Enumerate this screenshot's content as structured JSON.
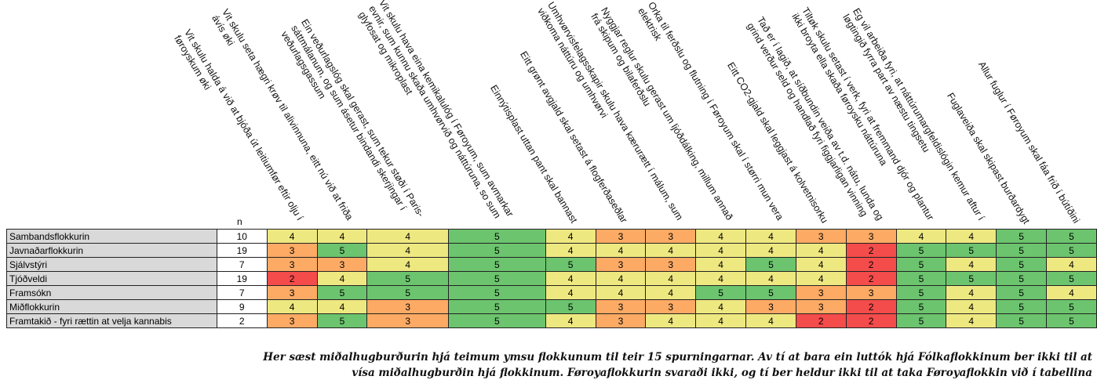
{
  "chart_data": {
    "type": "heatmap",
    "n_label": "n",
    "questions": [
      [
        "Vit skulu halda á við at bjóða út leitiumfør eftir olju í",
        "føroyskum øki"
      ],
      [
        "Vit skulu seta hægri krøv til alivinnuna, eitt nú við at friða",
        "ávís øki"
      ],
      [
        "Ein veðurlagslóg skal gerast, sum tekur støði í Paris-",
        "sáttmálanum, og sum ásetur bindandi skerjingar í",
        "veðurlagsgassum"
      ],
      [
        "Vit skulu hava eina kemikalulóg í Føroyum, sum avmarkar",
        "evnir, sum kunnu skaða umhvørvið og náttúruna, so sum",
        "glyfosat og mikroplast"
      ],
      [
        "Einnýtisplast uttan pant skal bannast"
      ],
      [
        "Eitt grønt avgjald skal setast á flogferðaseðlar"
      ],
      [
        "Umhvørvisfelagsskapir skulu hava kærurætt í málum, sum",
        "viðkoma náttúru og umhvørvi"
      ],
      [
        "Nyggjar reglur skulu gerast um ljóðdálking, millum annað",
        "frá skipum og bilaferðslu"
      ],
      [
        "Orka til ferðslu og flutning í Føroyum skal í størri mun vera",
        "elektrisk"
      ],
      [
        "Eitt CO2-gjald skal leggjast á kolvetnisorku"
      ],
      [
        "Tað er í lagið, at síðbundin veiða av t.d. nátu, lunda og",
        "grind verður seld og handlað fyri figgjarligan vinning"
      ],
      [
        "Tiltøk skulu setast í verk, fyri at fremmand djór og plantur",
        "ikki broyta ella skaða føroysku náttúruna"
      ],
      [
        "Eg vil arbeiða fyri, at náttúrumargfeldislógin kemur aftur í",
        "løgtingið fyrra part av næstu tingsetu"
      ],
      [
        "Fuglaveiða skal skipast burðardygt"
      ],
      [
        "Allur fuglur í Føroyum skal fáa frið í bútíðini"
      ]
    ],
    "parties": [
      {
        "name": "Sambandsflokkurin",
        "n": 10,
        "values": [
          4,
          4,
          4,
          5,
          4,
          3,
          3,
          4,
          4,
          3,
          3,
          4,
          4,
          5,
          5
        ]
      },
      {
        "name": "Javnaðarflokkurin",
        "n": 19,
        "values": [
          3,
          5,
          4,
          5,
          4,
          4,
          4,
          4,
          4,
          4,
          2,
          5,
          5,
          5,
          5
        ]
      },
      {
        "name": "Sjálvstýri",
        "n": 7,
        "values": [
          3,
          3,
          4,
          5,
          5,
          3,
          3,
          4,
          5,
          4,
          2,
          5,
          4,
          5,
          4
        ]
      },
      {
        "name": "Tjóðveldi",
        "n": 19,
        "values": [
          2,
          4,
          5,
          5,
          4,
          4,
          4,
          4,
          4,
          4,
          2,
          5,
          5,
          5,
          5
        ]
      },
      {
        "name": "Framsókn",
        "n": 7,
        "values": [
          3,
          5,
          5,
          5,
          4,
          4,
          4,
          5,
          5,
          3,
          3,
          5,
          4,
          5,
          4
        ]
      },
      {
        "name": "Miðflokkurin",
        "n": 9,
        "values": [
          4,
          4,
          3,
          5,
          5,
          3,
          3,
          4,
          3,
          3,
          2,
          5,
          4,
          5,
          5
        ]
      },
      {
        "name": "Framtakið - fyri rættin at velja kannabis",
        "n": 2,
        "values": [
          3,
          5,
          3,
          5,
          4,
          3,
          4,
          4,
          4,
          2,
          2,
          5,
          4,
          5,
          5
        ]
      }
    ],
    "color_scale": {
      "1": "#f8696b",
      "2": "#f8696b",
      "3": "#fdb56e",
      "4": "#e4e47e",
      "5": "#86cf79"
    },
    "caption": [
      "Her sæst miðalhugburðurin hjá teimum ymsu flokkunum til teir 15 spurningarnar. Av tí at bara ein luttók hjá Fólkaflokkinum ber ikki til at",
      "vísa miðalhugburðin hjá flokkinum. Føroyaflokkurin svaraði ikki, og tí ber heldur ikki til at taka Føroyaflokkin við í tabellina"
    ]
  }
}
